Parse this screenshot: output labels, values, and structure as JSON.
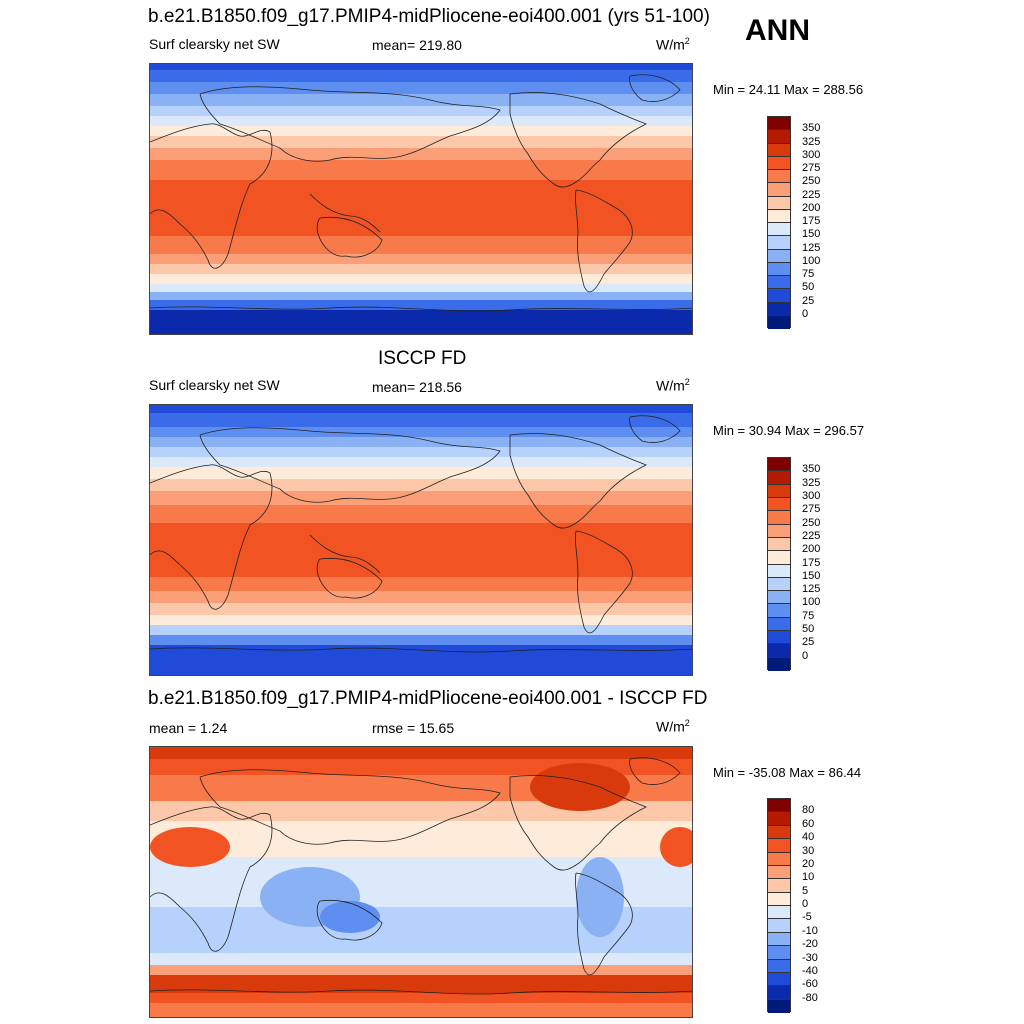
{
  "season": "ANN",
  "panels": [
    {
      "title": "b.e21.B1850.f09_g17.PMIP4-midPliocene-eoi400.001 (yrs 51-100)",
      "left_label": "Surf clearsky net SW",
      "center_label": "mean= 219.80",
      "units_base": "W/m",
      "units_exp": "2",
      "minmax": "Min =  24.11 Max = 288.56",
      "levels": [
        "350",
        "325",
        "300",
        "275",
        "250",
        "225",
        "200",
        "175",
        "150",
        "125",
        "100",
        "75",
        "50",
        "25",
        "0"
      ],
      "colors": [
        "#800000",
        "#b31a00",
        "#d93a0c",
        "#f25322",
        "#f8794a",
        "#fb9f78",
        "#fdc7aa",
        "#feebd9",
        "#dbe9fb",
        "#b6d1fb",
        "#8bb1f5",
        "#5d8ef0",
        "#3a6cea",
        "#1f4bd8",
        "#0b2aab",
        "#001a7a"
      ]
    },
    {
      "title": "ISCCP FD",
      "left_label": "Surf clearsky net SW",
      "center_label": "mean= 218.56",
      "units_base": "W/m",
      "units_exp": "2",
      "minmax": "Min =  30.94 Max = 296.57",
      "levels": [
        "350",
        "325",
        "300",
        "275",
        "250",
        "225",
        "200",
        "175",
        "150",
        "125",
        "100",
        "75",
        "50",
        "25",
        "0"
      ],
      "colors": [
        "#800000",
        "#b31a00",
        "#d93a0c",
        "#f25322",
        "#f8794a",
        "#fb9f78",
        "#fdc7aa",
        "#feebd9",
        "#dbe9fb",
        "#b6d1fb",
        "#8bb1f5",
        "#5d8ef0",
        "#3a6cea",
        "#1f4bd8",
        "#0b2aab",
        "#001a7a"
      ]
    },
    {
      "title": "b.e21.B1850.f09_g17.PMIP4-midPliocene-eoi400.001 - ISCCP FD",
      "left_label": "mean =   1.24",
      "center_label": "rmse =  15.65",
      "units_base": "W/m",
      "units_exp": "2",
      "minmax": "Min = -35.08 Max =  86.44",
      "levels": [
        "80",
        "60",
        "40",
        "30",
        "20",
        "10",
        "5",
        "0",
        "-5",
        "-10",
        "-20",
        "-30",
        "-40",
        "-60",
        "-80"
      ],
      "colors": [
        "#800000",
        "#b31a00",
        "#d93a0c",
        "#f25322",
        "#f8794a",
        "#fb9f78",
        "#fdc7aa",
        "#feebd9",
        "#dbe9fb",
        "#b6d1fb",
        "#8bb1f5",
        "#5d8ef0",
        "#3a6cea",
        "#1f4bd8",
        "#0b2aab",
        "#001a7a"
      ]
    }
  ]
}
